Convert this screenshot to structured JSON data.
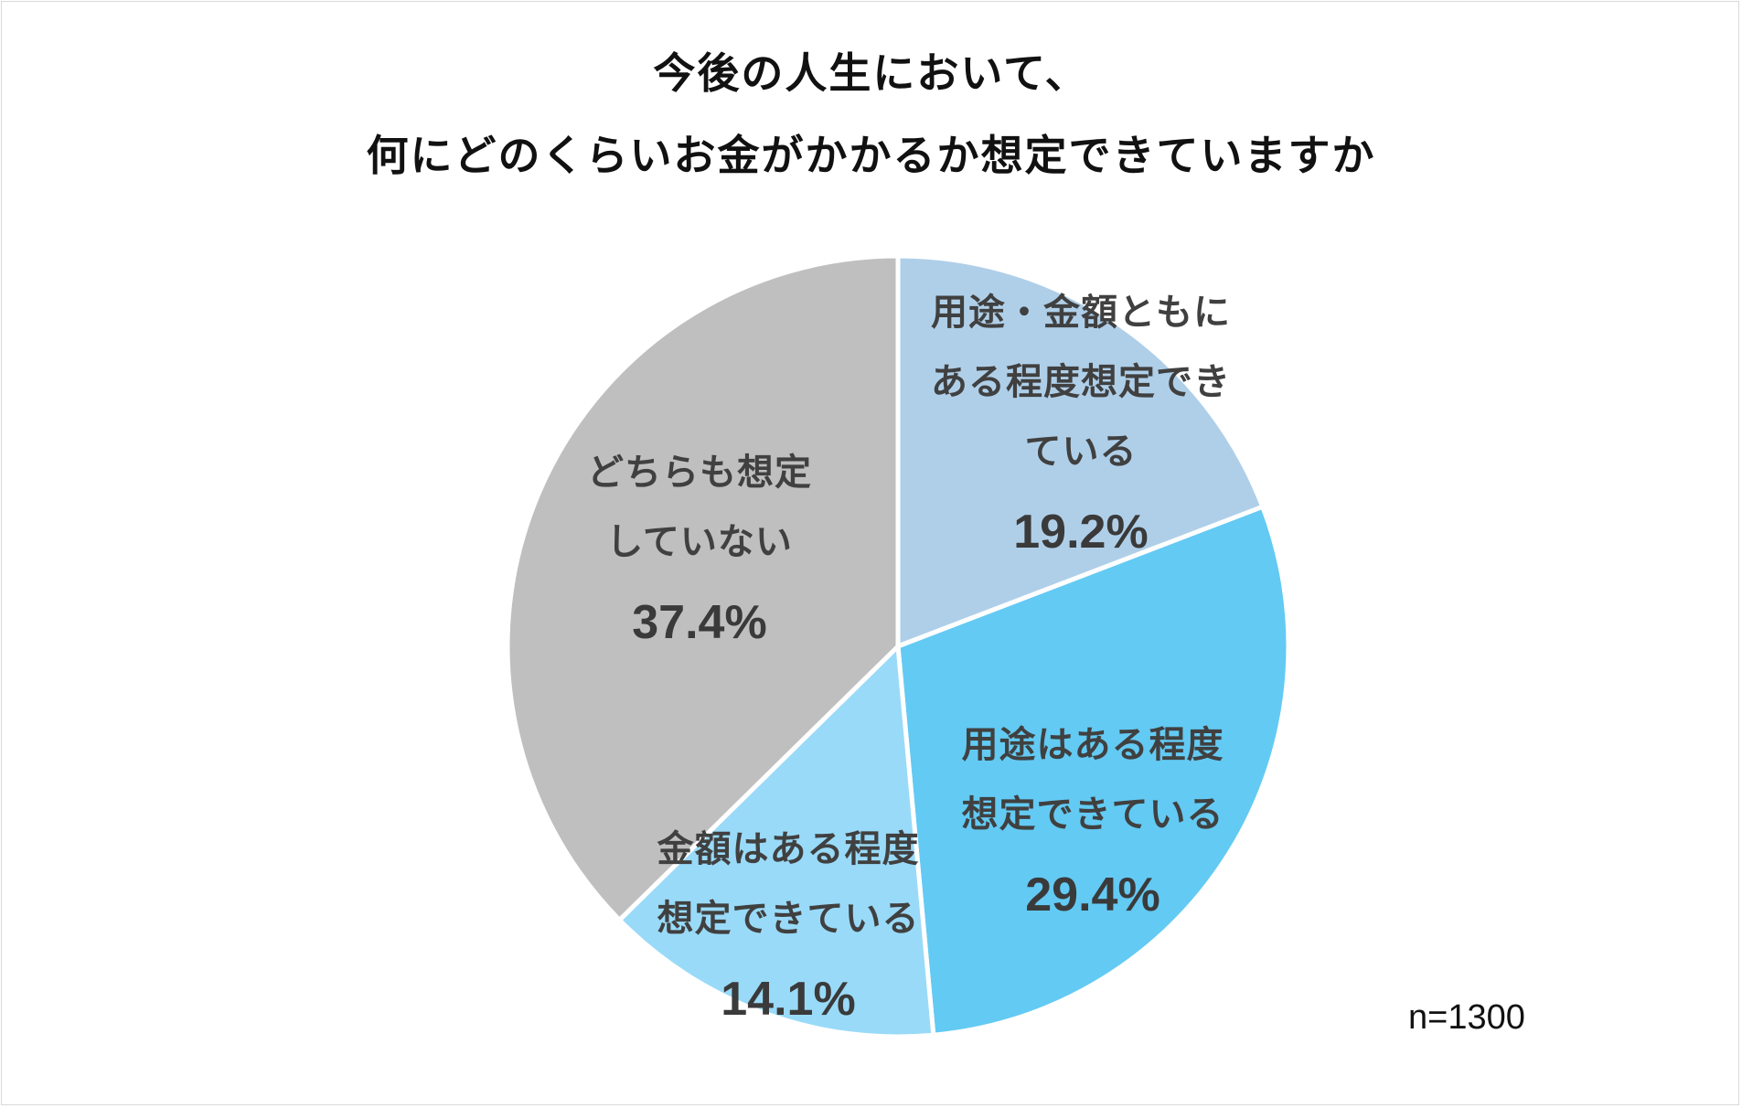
{
  "chart_data": {
    "type": "pie",
    "title_lines": [
      "今後の人生において、",
      "何にどのくらいお金がかかるか想定できていますか"
    ],
    "slices": [
      {
        "label_lines": [
          "用途・金額ともに",
          "ある程度想定でき",
          "ている"
        ],
        "value": 19.2,
        "value_label": "19.2%",
        "color": "#afcfe9"
      },
      {
        "label_lines": [
          "用途はある程度",
          "想定できている"
        ],
        "value": 29.4,
        "value_label": "29.4%",
        "color": "#63caf3"
      },
      {
        "label_lines": [
          "金額はある程度",
          "想定できている"
        ],
        "value": 14.1,
        "value_label": "14.1%",
        "color": "#99daf8"
      },
      {
        "label_lines": [
          "どちらも想定",
          "していない"
        ],
        "value": 37.4,
        "value_label": "37.4%",
        "color": "#bfbfbf"
      }
    ],
    "start": "12 o'clock, clockwise",
    "note": "n=1300"
  }
}
